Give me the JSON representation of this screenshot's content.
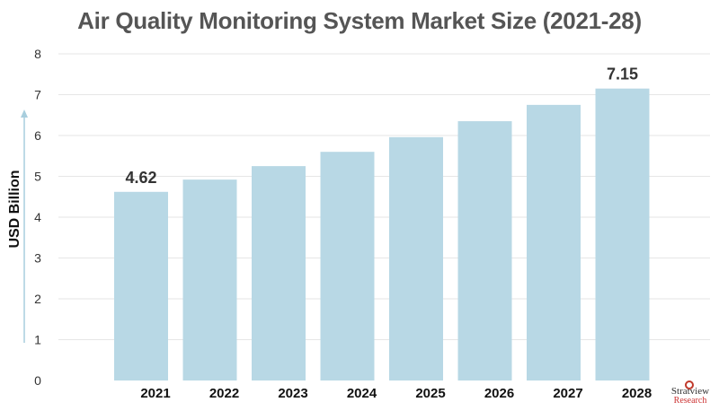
{
  "chart_data": {
    "type": "bar",
    "title": "Air Quality Monitoring System Market Size (2021-28)",
    "ylabel": "USD Billion",
    "xlabel": "",
    "categories": [
      "2021",
      "2022",
      "2023",
      "2024",
      "2025",
      "2026",
      "2027",
      "2028"
    ],
    "values": [
      4.62,
      4.92,
      5.25,
      5.6,
      5.96,
      6.35,
      6.75,
      7.15
    ],
    "data_labels": [
      "4.62",
      "",
      "",
      "",
      "",
      "",
      "",
      "7.15"
    ],
    "yticks": [
      "0",
      "1",
      "2",
      "3",
      "4",
      "5",
      "6",
      "7",
      "8"
    ],
    "ylim": [
      0,
      8
    ],
    "grid": true,
    "bar_color": "#b8d8e5",
    "grid_color": "#e6e6e6",
    "axis_arrow_color": "#a8cedd"
  },
  "logo": {
    "name": "Stratview",
    "sub": "Research"
  }
}
